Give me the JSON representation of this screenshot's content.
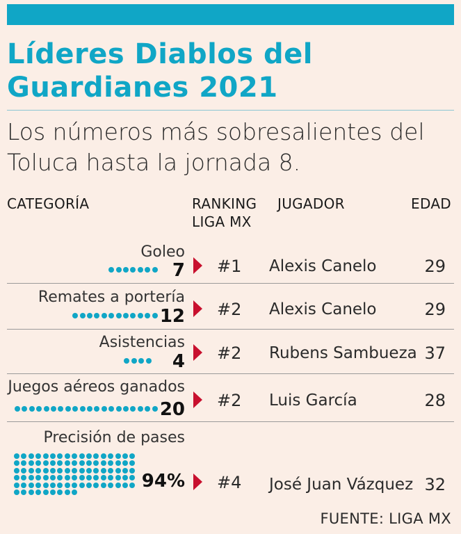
{
  "header": {
    "title": "Líderes Diablos del Guardianes 2021",
    "subtitle": "Los números más sobresalientes del Toluca hasta la jornada 8."
  },
  "columns": {
    "category": "CATEGORÍA",
    "ranking": "RANKING LIGA MX",
    "player": "JUGADOR",
    "age": "EDAD"
  },
  "chart_data": {
    "type": "table",
    "title": "Líderes Diablos del Guardianes 2021",
    "subtitle": "Los números más sobresalientes del Toluca hasta la jornada 8.",
    "rows": [
      {
        "category": "Goleo",
        "value": 7,
        "value_label": "7",
        "ranking": "#1",
        "player": "Alexis Canelo",
        "age": "29"
      },
      {
        "category": "Remates a portería",
        "value": 12,
        "value_label": "12",
        "ranking": "#2",
        "player": "Alexis Canelo",
        "age": "29"
      },
      {
        "category": "Asistencias",
        "value": 4,
        "value_label": "4",
        "ranking": "#2",
        "player": "Rubens Sambueza",
        "age": "37"
      },
      {
        "category": "Juegos aéreos ganados",
        "value": 20,
        "value_label": "20",
        "ranking": "#2",
        "player": "Luis García",
        "age": "28"
      },
      {
        "category": "Precisión de pases",
        "value": 94,
        "value_label": "94%",
        "ranking": "#4",
        "player": "José Juan Vázquez",
        "age": "32"
      }
    ],
    "source": "FUENTE: LIGA MX"
  },
  "colors": {
    "accent": "#10a6c6",
    "arrow": "#c8102e",
    "background": "#fbeee6"
  }
}
